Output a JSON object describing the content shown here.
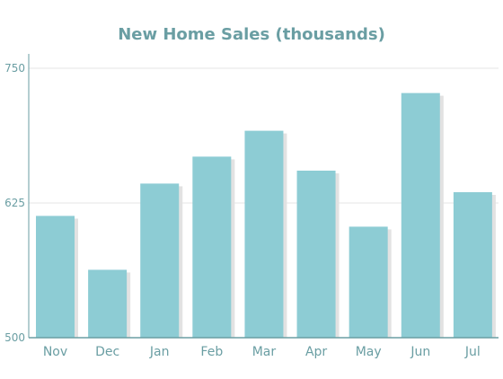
{
  "chart_data": {
    "type": "bar",
    "title": "New Home Sales (thousands)",
    "categories": [
      "Nov",
      "Dec",
      "Jan",
      "Feb",
      "Mar",
      "Apr",
      "May",
      "Jun",
      "Jul"
    ],
    "values": [
      613,
      563,
      643,
      668,
      692,
      655,
      603,
      727,
      635
    ],
    "xlabel": "",
    "ylabel": "",
    "ylim": [
      500,
      750
    ],
    "yticks": [
      "500",
      "625",
      "750"
    ],
    "grid": true,
    "legend": "none",
    "colors": {
      "bar": "#8dccd4",
      "bar_shadow": "#e2e2e2",
      "text": "#6a9ea3",
      "axis": "#6a9ea3",
      "grid": "#e6e6e6"
    }
  }
}
